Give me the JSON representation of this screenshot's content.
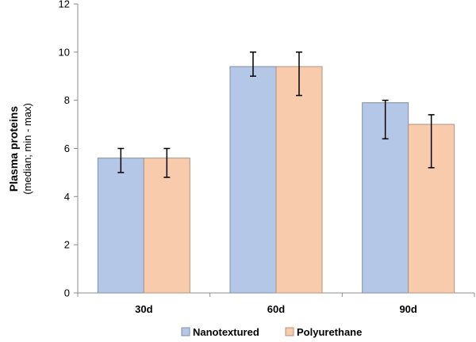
{
  "chart_data": {
    "type": "bar",
    "categories": [
      "30d",
      "60d",
      "90d"
    ],
    "series": [
      {
        "name": "Nanotextured",
        "values": [
          5.6,
          9.4,
          7.9
        ],
        "err_low": [
          5.0,
          9.0,
          6.4
        ],
        "err_high": [
          6.0,
          10.0,
          8.0
        ],
        "color": "#b4c7e7",
        "stroke": "#7f8fa8"
      },
      {
        "name": "Polyurethane",
        "values": [
          5.6,
          9.4,
          7.0
        ],
        "err_low": [
          4.8,
          8.2,
          5.2
        ],
        "err_high": [
          6.0,
          10.0,
          7.4
        ],
        "color": "#f8cbad",
        "stroke": "#b09383"
      }
    ],
    "title": "",
    "xlabel": "",
    "ylabel": "Plasma proteins",
    "ylabel_sub": "(median; min - max)",
    "ylim": [
      0,
      12
    ],
    "yticks": [
      0,
      2,
      4,
      6,
      8,
      10,
      12
    ],
    "grid": false,
    "legend_position": "bottom"
  }
}
